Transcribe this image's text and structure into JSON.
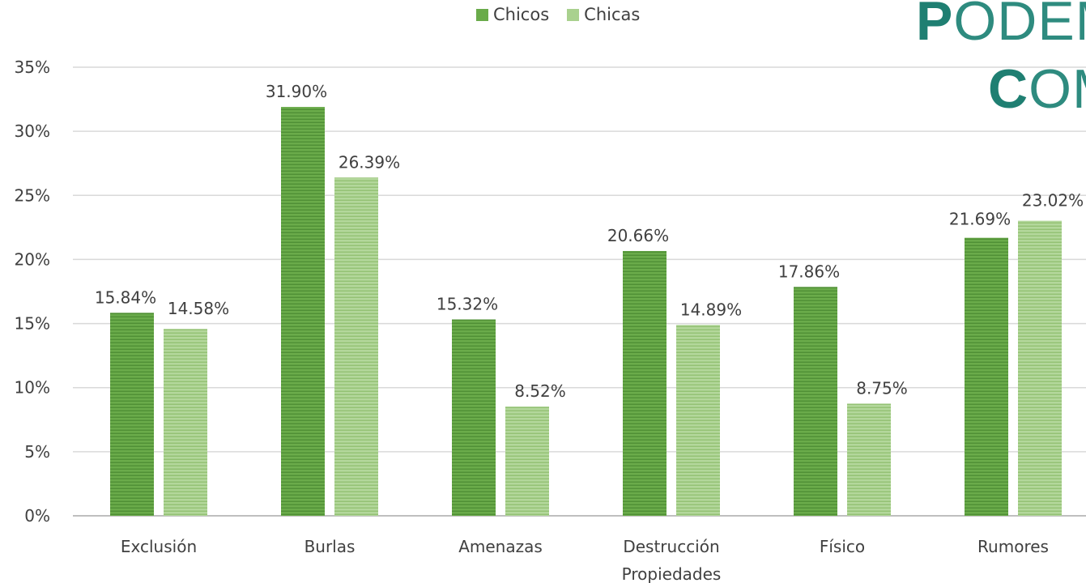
{
  "chart_data": {
    "type": "bar",
    "categories": [
      "Exclusión",
      "Burlas",
      "Amenazas",
      "Destrucción Propiedades",
      "Físico",
      "Rumores"
    ],
    "category_lines": [
      [
        "Exclusión"
      ],
      [
        "Burlas"
      ],
      [
        "Amenazas"
      ],
      [
        "Destrucción",
        "Propiedades"
      ],
      [
        "Físico"
      ],
      [
        "Rumores"
      ]
    ],
    "series": [
      {
        "name": "Chicos",
        "values": [
          15.84,
          31.9,
          15.32,
          20.66,
          17.86,
          21.69
        ],
        "labels": [
          "15.84%",
          "31.90%",
          "15.32%",
          "20.66%",
          "17.86%",
          "21.69%"
        ],
        "color": "#6aab4a"
      },
      {
        "name": "Chicas",
        "values": [
          14.58,
          26.39,
          8.52,
          14.89,
          8.75,
          23.02
        ],
        "labels": [
          "14.58%",
          "26.39%",
          "8.52%",
          "14.89%",
          "8.75%",
          "23.02%"
        ],
        "color": "#a9d18e"
      }
    ],
    "yticks": [
      0,
      5,
      10,
      15,
      20,
      25,
      30,
      35
    ],
    "ytick_labels": [
      "0%",
      "5%",
      "10%",
      "15%",
      "20%",
      "25%",
      "30%",
      "35%"
    ],
    "ylim": [
      0,
      35
    ],
    "grid": true,
    "legend_position": "top-center",
    "title": "",
    "xlabel": "",
    "ylabel": ""
  },
  "overlay": {
    "line1_initial": "P",
    "line1_rest": "ODEM",
    "line2_initial": "C",
    "line2_rest": "OM",
    "color": "#2e8b7f"
  }
}
